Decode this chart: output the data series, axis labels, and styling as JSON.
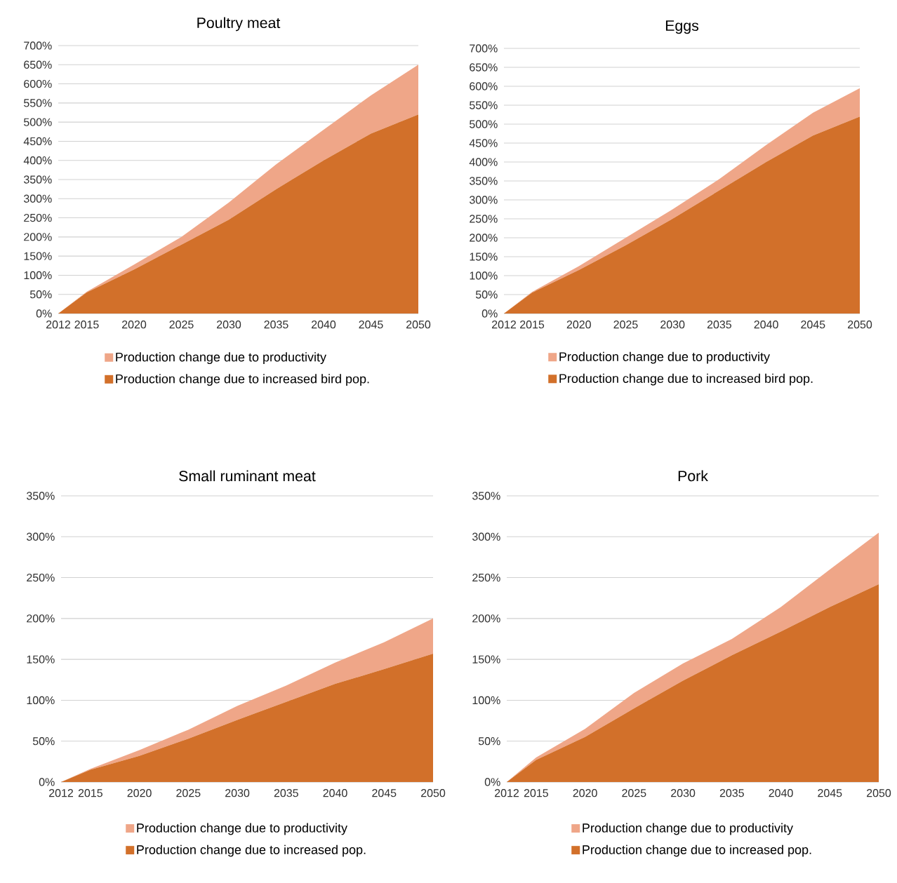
{
  "chart_data": [
    {
      "type": "area",
      "title": "Poultry meat",
      "stacked": true,
      "grid": "y",
      "legend": "bottom",
      "x": [
        2012,
        2015,
        2020,
        2025,
        2030,
        2035,
        2040,
        2045,
        2050
      ],
      "xlim": [
        2012,
        2050
      ],
      "ylim": [
        0,
        700
      ],
      "xticks": [
        2012,
        2015,
        2020,
        2025,
        2030,
        2035,
        2040,
        2045,
        2050
      ],
      "yticks": [
        {
          "value": 0,
          "label": "0%"
        },
        {
          "value": 50,
          "label": "50%"
        },
        {
          "value": 100,
          "label": "100%"
        },
        {
          "value": 150,
          "label": "150%"
        },
        {
          "value": 200,
          "label": "200%"
        },
        {
          "value": 250,
          "label": "250%"
        },
        {
          "value": 300,
          "label": "300%"
        },
        {
          "value": 350,
          "label": "350%"
        },
        {
          "value": 400,
          "label": "400%"
        },
        {
          "value": 450,
          "label": "450%"
        },
        {
          "value": 500,
          "label": "500%"
        },
        {
          "value": 550,
          "label": "550%"
        },
        {
          "value": 600,
          "label": "600%"
        },
        {
          "value": 650,
          "label": "650%"
        },
        {
          "value": 700,
          "label": "700%"
        }
      ],
      "series": [
        {
          "name": "Production change due to increased bird pop.",
          "color": "#d2702a",
          "values": [
            0,
            55,
            115,
            180,
            245,
            325,
            400,
            470,
            520
          ]
        },
        {
          "name": "Production change due to productivity",
          "color": "#efa688",
          "values": [
            0,
            2,
            13,
            20,
            45,
            65,
            80,
            100,
            130
          ]
        }
      ]
    },
    {
      "type": "area",
      "title": "Eggs",
      "stacked": true,
      "grid": "y",
      "legend": "bottom",
      "x": [
        2012,
        2015,
        2020,
        2025,
        2030,
        2035,
        2040,
        2045,
        2050
      ],
      "xlim": [
        2012,
        2050
      ],
      "ylim": [
        0,
        700
      ],
      "xticks": [
        2012,
        2015,
        2020,
        2025,
        2030,
        2035,
        2040,
        2045,
        2050
      ],
      "yticks": [
        {
          "value": 0,
          "label": "0%"
        },
        {
          "value": 50,
          "label": "50%"
        },
        {
          "value": 100,
          "label": "100%"
        },
        {
          "value": 150,
          "label": "150%"
        },
        {
          "value": 200,
          "label": "200%"
        },
        {
          "value": 250,
          "label": "250%"
        },
        {
          "value": 300,
          "label": "300%"
        },
        {
          "value": 350,
          "label": "350%"
        },
        {
          "value": 400,
          "label": "400%"
        },
        {
          "value": 450,
          "label": "450%"
        },
        {
          "value": 500,
          "label": "500%"
        },
        {
          "value": 550,
          "label": "550%"
        },
        {
          "value": 600,
          "label": "600%"
        },
        {
          "value": 650,
          "label": "650%"
        },
        {
          "value": 700,
          "label": "700%"
        }
      ],
      "series": [
        {
          "name": "Production change due to increased bird pop.",
          "color": "#d2702a",
          "values": [
            0,
            55,
            115,
            180,
            250,
            325,
            400,
            470,
            520
          ]
        },
        {
          "name": "Production change due to productivity",
          "color": "#efa688",
          "values": [
            0,
            2,
            10,
            20,
            25,
            30,
            45,
            60,
            75
          ]
        }
      ]
    },
    {
      "type": "area",
      "title": "Small ruminant meat",
      "stacked": true,
      "grid": "y",
      "legend": "bottom",
      "x": [
        2012,
        2015,
        2020,
        2025,
        2030,
        2035,
        2040,
        2045,
        2050
      ],
      "xlim": [
        2012,
        2050
      ],
      "ylim": [
        0,
        350
      ],
      "xticks": [
        2012,
        2015,
        2020,
        2025,
        2030,
        2035,
        2040,
        2045,
        2050
      ],
      "yticks": [
        {
          "value": 0,
          "label": "0%"
        },
        {
          "value": 50,
          "label": "50%"
        },
        {
          "value": 100,
          "label": "100%"
        },
        {
          "value": 150,
          "label": "150%"
        },
        {
          "value": 200,
          "label": "200%"
        },
        {
          "value": 250,
          "label": "250%"
        },
        {
          "value": 300,
          "label": "300%"
        },
        {
          "value": 350,
          "label": "350%"
        }
      ],
      "series": [
        {
          "name": "Production change due to increased pop.",
          "color": "#d2702a",
          "values": [
            0,
            15,
            32,
            53,
            76,
            98,
            120,
            138,
            157
          ]
        },
        {
          "name": "Production change due to productivity",
          "color": "#efa688",
          "values": [
            0,
            1,
            7,
            11,
            17,
            20,
            26,
            33,
            43
          ]
        }
      ]
    },
    {
      "type": "area",
      "title": "Pork",
      "stacked": true,
      "grid": "y",
      "legend": "bottom",
      "x": [
        2012,
        2015,
        2020,
        2025,
        2030,
        2035,
        2040,
        2045,
        2050
      ],
      "xlim": [
        2012,
        2050
      ],
      "ylim": [
        0,
        350
      ],
      "xticks": [
        2012,
        2015,
        2020,
        2025,
        2030,
        2035,
        2040,
        2045,
        2050
      ],
      "yticks": [
        {
          "value": 0,
          "label": "0%"
        },
        {
          "value": 50,
          "label": "50%"
        },
        {
          "value": 100,
          "label": "100%"
        },
        {
          "value": 150,
          "label": "150%"
        },
        {
          "value": 200,
          "label": "200%"
        },
        {
          "value": 250,
          "label": "250%"
        },
        {
          "value": 300,
          "label": "300%"
        },
        {
          "value": 350,
          "label": "350%"
        }
      ],
      "series": [
        {
          "name": "Production change due to increased pop.",
          "color": "#d2702a",
          "values": [
            0,
            27,
            55,
            90,
            124,
            155,
            184,
            214,
            242
          ]
        },
        {
          "name": "Production change due to productivity",
          "color": "#efa688",
          "values": [
            0,
            3,
            10,
            19,
            21,
            20,
            30,
            46,
            63
          ]
        }
      ]
    }
  ]
}
